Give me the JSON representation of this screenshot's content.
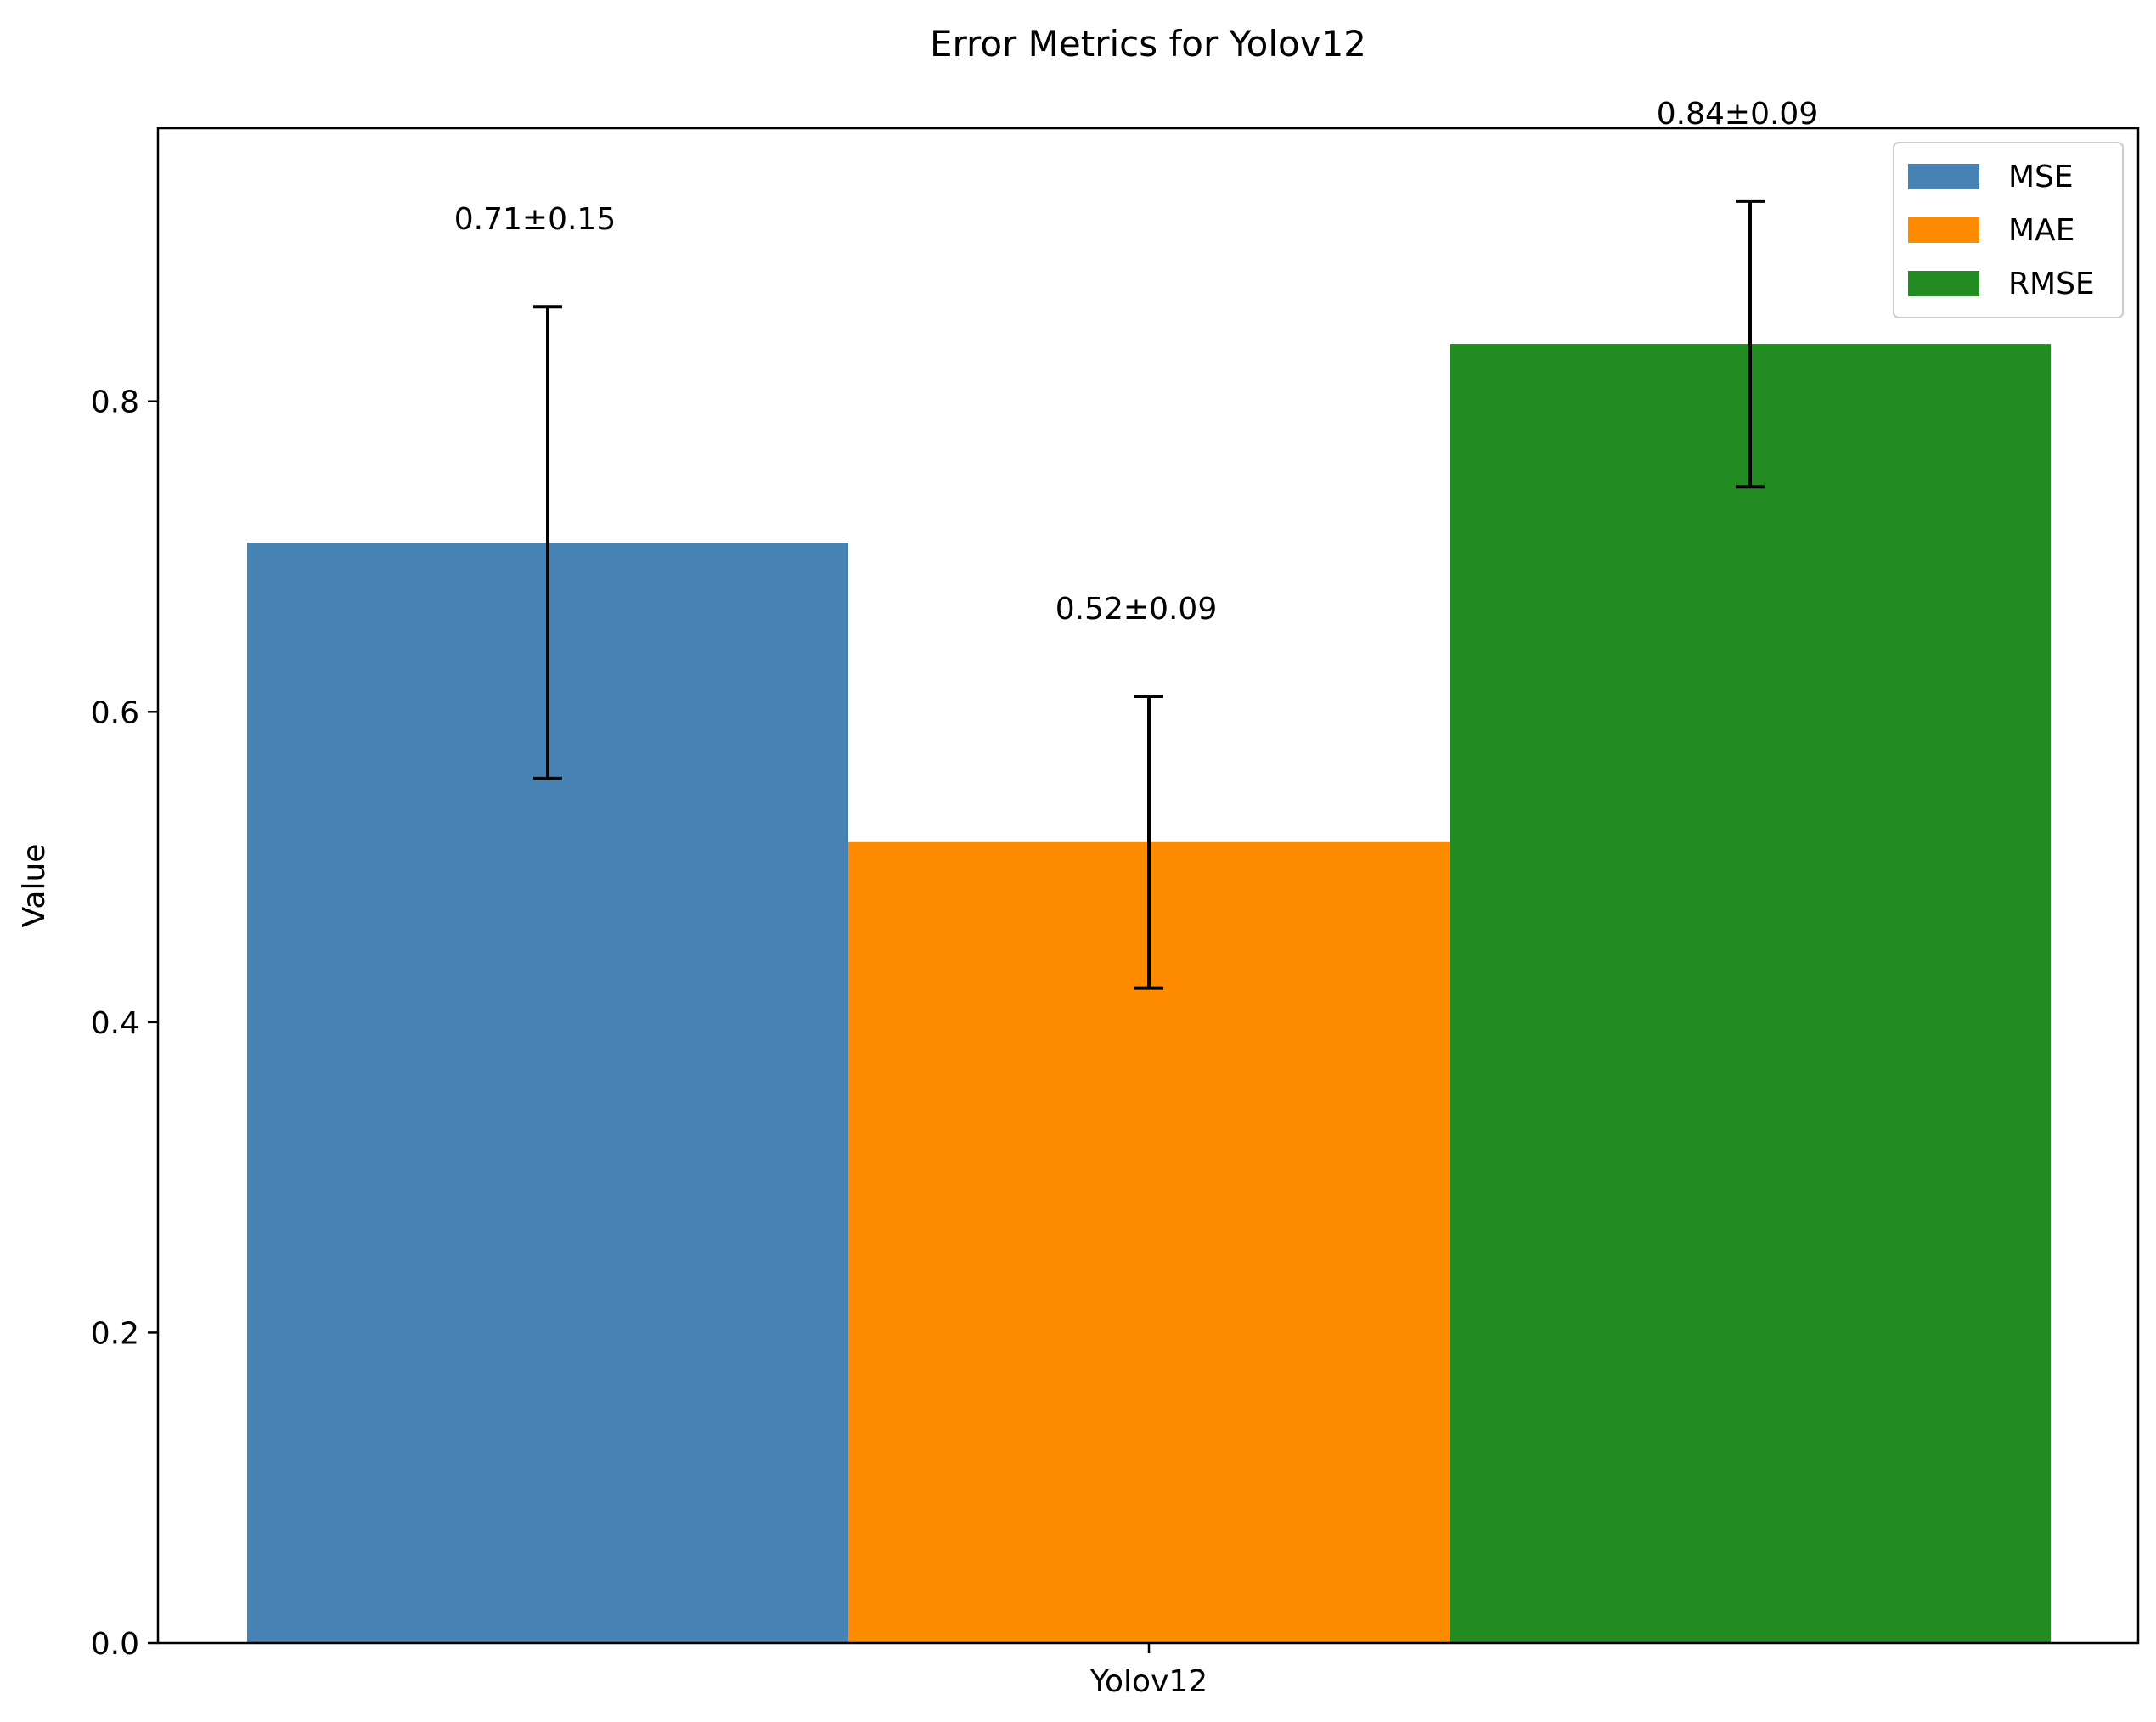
{
  "chart_data": {
    "type": "bar",
    "title": "Error Metrics for Yolov12",
    "xlabel": "",
    "ylabel": "Value",
    "categories": [
      "Yolov12"
    ],
    "ylim": [
      0,
      0.976
    ],
    "yticks": [
      0.0,
      0.2,
      0.4,
      0.6,
      0.8
    ],
    "ytick_labels": [
      "0.0",
      "0.2",
      "0.4",
      "0.6",
      "0.8"
    ],
    "grid": false,
    "legend_position": "top-right",
    "series": [
      {
        "name": "MSE",
        "values": [
          0.709
        ],
        "error": [
          0.152
        ],
        "label": "0.71±0.15",
        "color": "#4682b4"
      },
      {
        "name": "MAE",
        "values": [
          0.516
        ],
        "error": [
          0.094
        ],
        "label": "0.52±0.09",
        "color": "#ff8c00"
      },
      {
        "name": "RMSE",
        "values": [
          0.837
        ],
        "error": [
          0.092
        ],
        "label": "0.84±0.09",
        "color": "#228b22"
      }
    ]
  }
}
